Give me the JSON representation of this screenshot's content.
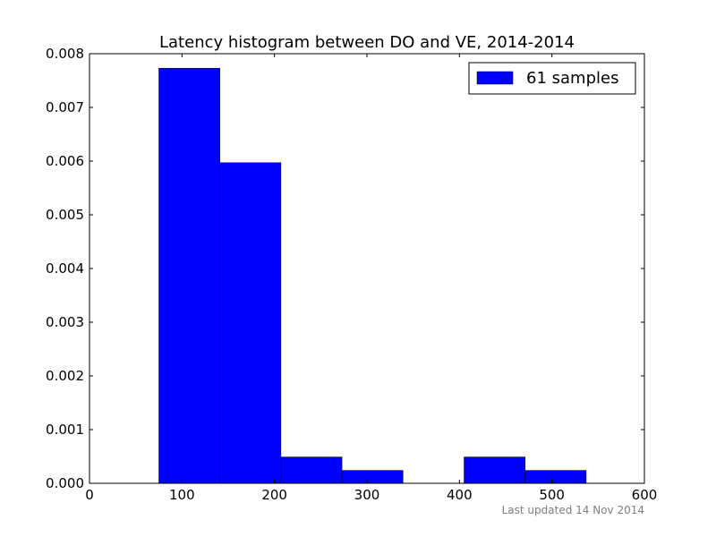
{
  "chart_data": {
    "type": "bar",
    "title": "Latency histogram between DO and VE, 2014-2014",
    "xlabel": "",
    "ylabel": "",
    "xlim": [
      0,
      600
    ],
    "ylim": [
      0,
      0.008
    ],
    "xticks": [
      "0",
      "100",
      "200",
      "300",
      "400",
      "500",
      "600"
    ],
    "yticks": [
      "0.000",
      "0.001",
      "0.002",
      "0.003",
      "0.004",
      "0.005",
      "0.006",
      "0.007",
      "0.008"
    ],
    "grid": false,
    "legend_position": "top-right",
    "series": [
      {
        "name": "61 samples",
        "color": "#0000ff",
        "bins": [
          {
            "x0": 75,
            "x1": 141,
            "value": 0.00773
          },
          {
            "x0": 141,
            "x1": 207,
            "value": 0.00597
          },
          {
            "x0": 207,
            "x1": 273,
            "value": 0.00049
          },
          {
            "x0": 273,
            "x1": 339,
            "value": 0.00024
          },
          {
            "x0": 339,
            "x1": 405,
            "value": 0.0
          },
          {
            "x0": 405,
            "x1": 471,
            "value": 0.00049
          },
          {
            "x0": 471,
            "x1": 537,
            "value": 0.00024
          }
        ]
      }
    ]
  },
  "footnote": "Last updated 14 Nov 2014"
}
